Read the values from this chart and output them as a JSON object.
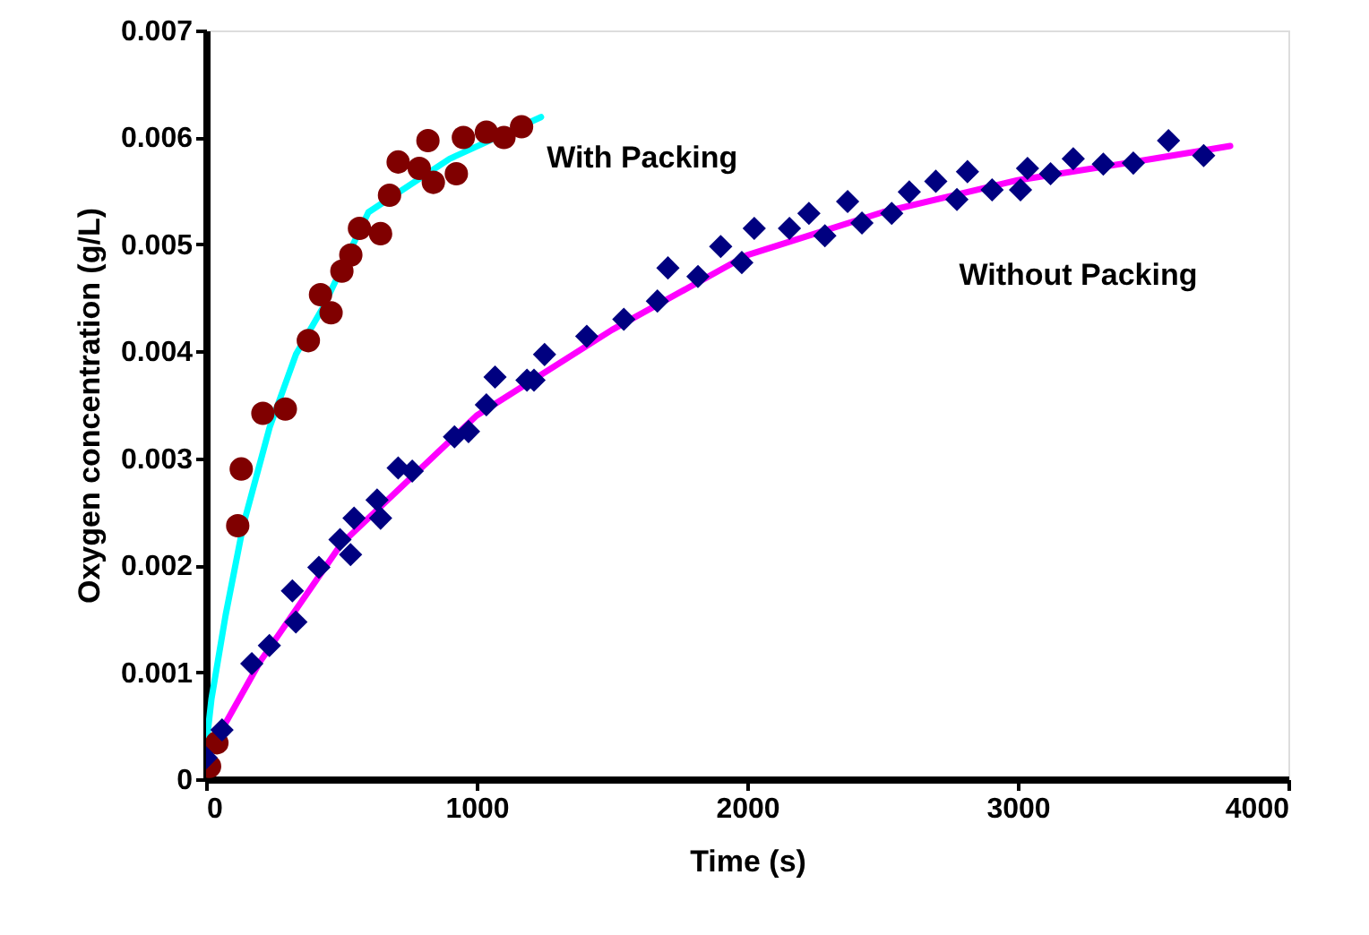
{
  "chart_data": {
    "type": "scatter",
    "xlabel": "Time (s)",
    "ylabel": "Oxygen concentration (g/L)",
    "xlim": [
      0,
      4000
    ],
    "xticks": [
      0,
      1000,
      2000,
      3000,
      4000
    ],
    "ylim": [
      0,
      0.007
    ],
    "yticks": [
      0,
      0.001,
      0.002,
      0.003,
      0.004,
      0.005,
      0.006,
      0.007
    ],
    "grid": false,
    "legend": false,
    "series": [
      {
        "type": "line",
        "color": "#00ffff",
        "marker": "none",
        "line_style": "solid",
        "x": [
          0,
          20,
          72,
          137,
          235,
          332,
          430,
          600,
          900,
          1238
        ],
        "values": [
          0.0003,
          0.00075,
          0.00153,
          0.00237,
          0.00329,
          0.00397,
          0.0044,
          0.0053,
          0.0058,
          0.00619
        ]
      },
      {
        "type": "line",
        "color": "#ff00ff",
        "marker": "none",
        "line_style": "solid",
        "x": [
          0,
          200,
          500,
          1000,
          1500,
          2000,
          2500,
          3000,
          3500,
          3785
        ],
        "values": [
          0.0002,
          0.0011,
          0.0022,
          0.0034,
          0.0042,
          0.0049,
          0.0053,
          0.0056,
          0.0058,
          0.00592
        ]
      },
      {
        "name": "With Packing",
        "color": "#800000",
        "marker": "circle",
        "x": [
          13,
          40,
          117,
          130,
          210,
          293,
          378,
          423,
          462,
          502,
          535,
          567,
          645,
          678,
          710,
          788,
          820,
          840,
          925,
          951,
          1036,
          1101,
          1166
        ],
        "values": [
          0.00012,
          0.00034,
          0.00237,
          0.0029,
          0.00342,
          0.00346,
          0.0041,
          0.00453,
          0.00436,
          0.00475,
          0.0049,
          0.00515,
          0.0051,
          0.00546,
          0.00577,
          0.00571,
          0.00597,
          0.00558,
          0.00566,
          0.006,
          0.00605,
          0.006,
          0.0061
        ]
      },
      {
        "name": "Without Packing",
        "color": "#000080",
        "marker": "diamond",
        "x": [
          0,
          59,
          169,
          234,
          319,
          332,
          417,
          495,
          534,
          547,
          632,
          645,
          710,
          762,
          918,
          970,
          1036,
          1068,
          1186,
          1212,
          1251,
          1407,
          1544,
          1668,
          1707,
          1818,
          1902,
          1980,
          2026,
          2156,
          2228,
          2287,
          2371,
          2424,
          2534,
          2599,
          2697,
          2775,
          2814,
          2905,
          3010,
          3036,
          3121,
          3205,
          3316,
          3427,
          3557,
          3687
        ],
        "values": [
          0.0002,
          0.00046,
          0.00108,
          0.00125,
          0.00176,
          0.00147,
          0.00198,
          0.00224,
          0.0021,
          0.00244,
          0.00261,
          0.00244,
          0.00291,
          0.00288,
          0.0032,
          0.00325,
          0.0035,
          0.00376,
          0.00373,
          0.00373,
          0.00397,
          0.00414,
          0.0043,
          0.00447,
          0.00478,
          0.0047,
          0.00498,
          0.00483,
          0.00515,
          0.00515,
          0.00529,
          0.00508,
          0.0054,
          0.0052,
          0.00529,
          0.00549,
          0.00559,
          0.00542,
          0.00568,
          0.00551,
          0.00551,
          0.00571,
          0.00566,
          0.0058,
          0.00575,
          0.00576,
          0.00597,
          0.00583
        ]
      }
    ]
  }
}
